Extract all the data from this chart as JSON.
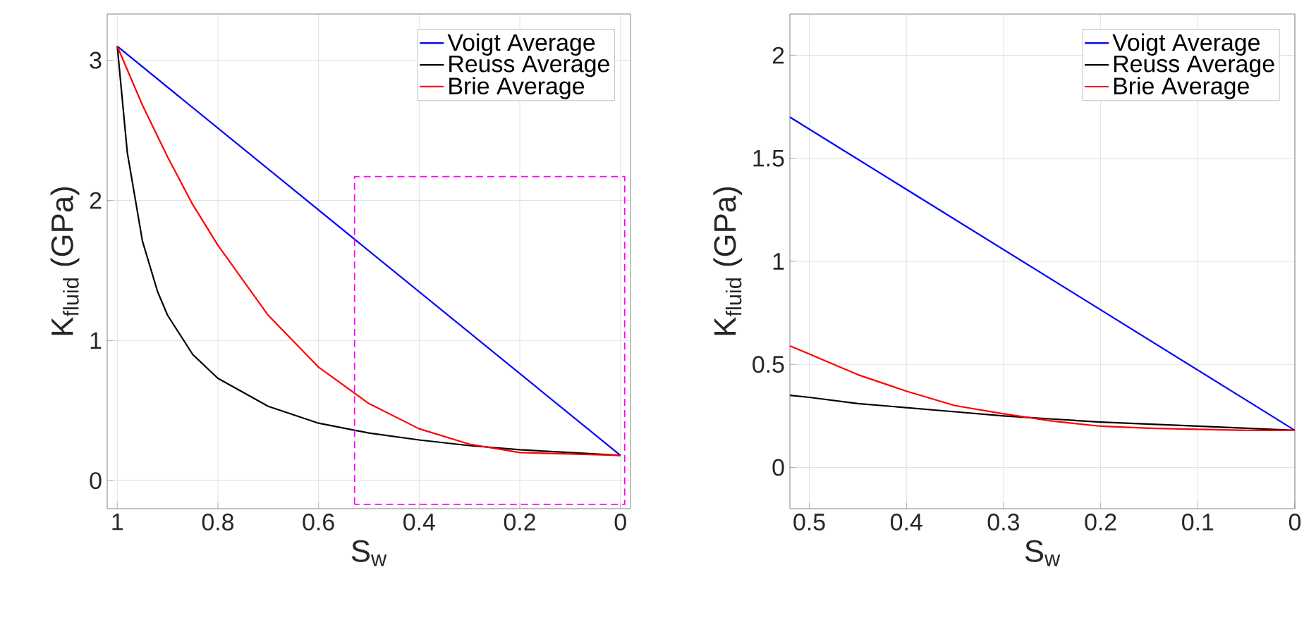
{
  "chart_data": [
    {
      "type": "line",
      "xlabel": "S$_{w}$",
      "ylabel": "K$_{fluid}$ (GPa)",
      "xlim": [
        1.02,
        -0.02
      ],
      "ylim": [
        -0.2,
        3.33
      ],
      "xticks": [
        1,
        0.8,
        0.6,
        0.4,
        0.2,
        0
      ],
      "yticks": [
        0,
        1,
        2,
        3
      ],
      "grid": true,
      "legend": "top right",
      "series": [
        {
          "name": "Voigt Average",
          "color": "#0000ff",
          "x": [
            1,
            0
          ],
          "values": [
            3.1,
            0.18
          ]
        },
        {
          "name": "Reuss Average",
          "color": "#000000",
          "x": [
            1,
            0.98,
            0.95,
            0.92,
            0.9,
            0.85,
            0.8,
            0.7,
            0.6,
            0.5,
            0.4,
            0.3,
            0.2,
            0.1,
            0
          ],
          "values": [
            3.1,
            2.34,
            1.71,
            1.35,
            1.18,
            0.9,
            0.73,
            0.53,
            0.41,
            0.34,
            0.29,
            0.25,
            0.22,
            0.2,
            0.18
          ]
        },
        {
          "name": "Brie Average",
          "color": "#ff0000",
          "x": [
            1,
            0.95,
            0.9,
            0.85,
            0.8,
            0.7,
            0.6,
            0.5,
            0.4,
            0.3,
            0.2,
            0.1,
            0
          ],
          "values": [
            3.1,
            2.68,
            2.31,
            1.97,
            1.68,
            1.18,
            0.81,
            0.55,
            0.37,
            0.26,
            0.2,
            0.19,
            0.18
          ]
        }
      ]
    },
    {
      "type": "line",
      "xlabel": "S$_{w}$",
      "ylabel": "K$_{fluid}$ (GPa)",
      "xlim": [
        0.52,
        0
      ],
      "ylim": [
        -0.2,
        2.2
      ],
      "xticks": [
        0.5,
        0.4,
        0.3,
        0.2,
        0.1,
        0
      ],
      "yticks": [
        0,
        0.5,
        1,
        1.5,
        2
      ],
      "grid": true,
      "legend": "top right",
      "series": [
        {
          "name": "Voigt Average",
          "color": "#0000ff",
          "x": [
            0.52,
            0
          ],
          "values": [
            1.7,
            0.18
          ]
        },
        {
          "name": "Reuss Average",
          "color": "#000000",
          "x": [
            0.52,
            0.5,
            0.45,
            0.4,
            0.35,
            0.3,
            0.25,
            0.2,
            0.15,
            0.1,
            0.05,
            0
          ],
          "values": [
            0.35,
            0.34,
            0.31,
            0.29,
            0.27,
            0.25,
            0.235,
            0.22,
            0.21,
            0.2,
            0.19,
            0.18
          ]
        },
        {
          "name": "Brie Average",
          "color": "#ff0000",
          "x": [
            0.52,
            0.5,
            0.45,
            0.4,
            0.35,
            0.3,
            0.25,
            0.2,
            0.15,
            0.1,
            0.05,
            0
          ],
          "values": [
            0.59,
            0.55,
            0.45,
            0.37,
            0.3,
            0.26,
            0.225,
            0.2,
            0.19,
            0.185,
            0.18,
            0.18
          ]
        }
      ]
    }
  ]
}
